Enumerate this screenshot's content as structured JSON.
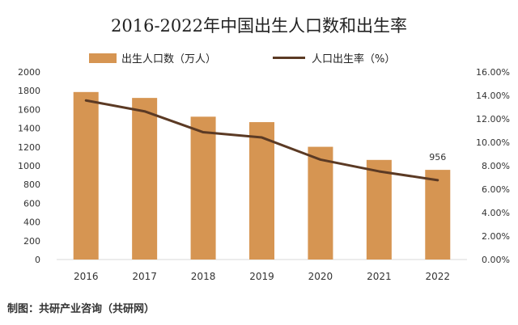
{
  "chart_data": {
    "type": "bar",
    "title": "2016-2022年中国出生人口数和出生率",
    "source": "制图：共研产业咨询（共研网）",
    "categories": [
      "2016",
      "2017",
      "2018",
      "2019",
      "2020",
      "2021",
      "2022"
    ],
    "series": [
      {
        "name": "出生人口数（万人）",
        "type": "bar",
        "axis": "left",
        "color": "#D69552",
        "values": [
          1786,
          1723,
          1523,
          1465,
          1202,
          1062,
          956
        ]
      },
      {
        "name": "人口出生率（%）",
        "type": "line",
        "axis": "right",
        "color": "#5B3A24",
        "values": [
          13.57,
          12.64,
          10.86,
          10.41,
          8.52,
          7.52,
          6.77
        ]
      }
    ],
    "data_labels": [
      {
        "category": "2022",
        "series": "出生人口数（万人）",
        "text": "956"
      }
    ],
    "y_left": {
      "min": 0,
      "max": 2000,
      "step": 200
    },
    "y_right": {
      "min": 0,
      "max": 16,
      "step": 2,
      "format": "percent_2dp"
    },
    "legend_position": "top",
    "grid": false
  }
}
